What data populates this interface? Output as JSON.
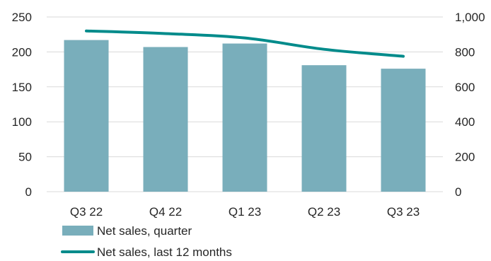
{
  "chart_data": {
    "type": "bar",
    "categories": [
      "Q3 22",
      "Q4 22",
      "Q1 23",
      "Q2 23",
      "Q3 23"
    ],
    "series": [
      {
        "name": "Net sales, quarter",
        "kind": "bar",
        "axis": "left",
        "color": "#79aebb",
        "values": [
          217,
          207,
          212,
          181,
          176
        ]
      },
      {
        "name": "Net sales, last 12 months",
        "kind": "line",
        "axis": "right",
        "color": "#008b8b",
        "values": [
          920,
          905,
          880,
          815,
          775
        ]
      }
    ],
    "ylim_left": [
      0,
      250
    ],
    "yticks_left": [
      "0",
      "50",
      "100",
      "150",
      "200",
      "250"
    ],
    "ylim_right": [
      0,
      1000
    ],
    "yticks_right": [
      "0",
      "200",
      "400",
      "600",
      "800",
      "1,000"
    ],
    "grid": "horizontal",
    "legend_position": "bottom-left"
  }
}
